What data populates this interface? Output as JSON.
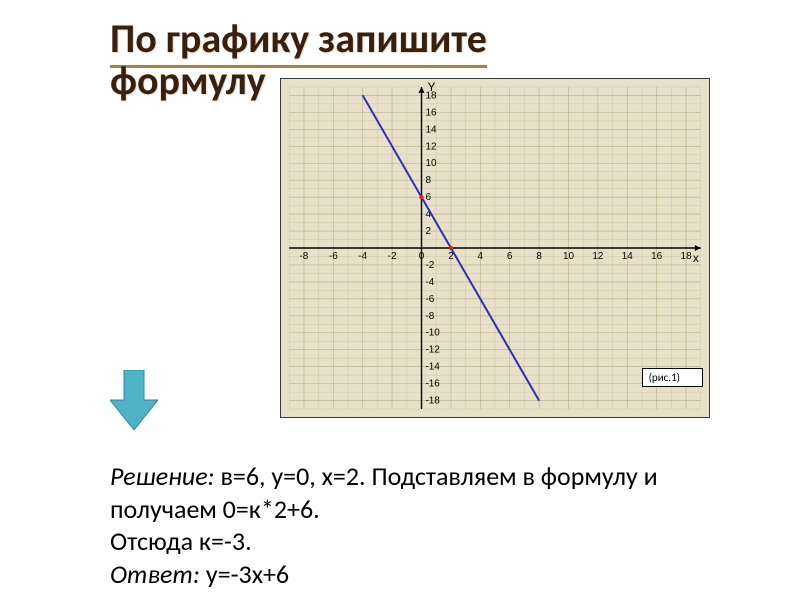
{
  "title": {
    "line1": "По графику запишите",
    "line2": "формулу"
  },
  "chart": {
    "type": "line",
    "background_color": "#e9e0c9",
    "axis_color": "#000000",
    "grid_color": "#cfc6a8",
    "major_grid_color": "#b8ae8e",
    "line_color": "#2a2fb8",
    "point_color": "#d22",
    "text_color": "#000000",
    "tick_fontsize": 10,
    "xlim": [
      -9,
      19
    ],
    "ylim": [
      -19,
      19
    ],
    "xtick_step": 2,
    "ytick_step": 2,
    "xlabel": "x",
    "ylabel": "Y",
    "xtick_labels": [
      "-8",
      "-6",
      "-4",
      "-2",
      "0",
      "2",
      "4",
      "6",
      "8",
      "10",
      "12",
      "14",
      "16",
      "18"
    ],
    "ytick_labels_pos": [
      "18",
      "16",
      "14",
      "12",
      "10",
      "8",
      "6",
      "4",
      "2"
    ],
    "ytick_labels_neg": [
      "-2",
      "-4",
      "-6",
      "-8",
      "-10",
      "-12",
      "-14",
      "-16",
      "-18"
    ],
    "line_points": [
      [
        -4,
        18
      ],
      [
        8,
        -18
      ]
    ],
    "marked_points": [
      [
        0,
        6
      ],
      [
        2,
        0
      ]
    ],
    "line_width": 2,
    "point_radius": 2.2
  },
  "caption": "(рис.1)",
  "arrow": {
    "fill": "#4db3c7",
    "stroke": "#2a8aa0"
  },
  "solution": {
    "label": "Решение:",
    "body1": " в=6, у=0, х=2. Подставляем в формулу и получаем 0=к*2+6.",
    "body2": "Отсюда к=-3.",
    "answer_label": "Ответ:",
    "answer_body": " у=-3х+6"
  }
}
